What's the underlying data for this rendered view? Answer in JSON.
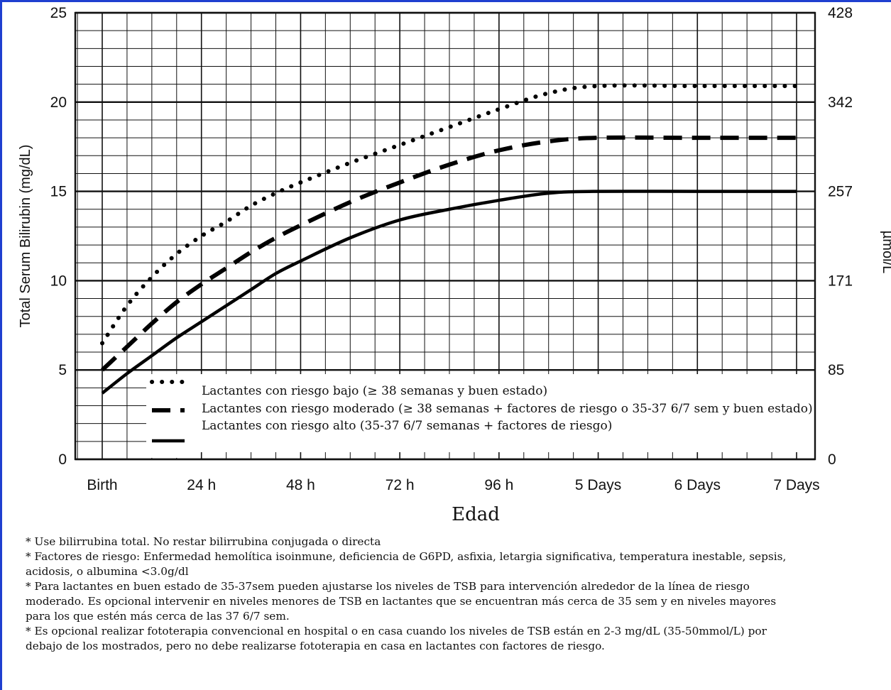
{
  "chart_data": {
    "type": "line",
    "title": "",
    "ylabel": "Total Serum Bilirubin (mg/dL)",
    "ylabel_right": "µmol/L",
    "xlabel": "Edad",
    "ylim": [
      0,
      25
    ],
    "yticks": [
      "0",
      "5",
      "10",
      "15",
      "20",
      "25"
    ],
    "yticks_right": [
      {
        "value": 0,
        "label": "0"
      },
      {
        "value": 5,
        "label": "85"
      },
      {
        "value": 10,
        "label": "171"
      },
      {
        "value": 15,
        "label": "257"
      },
      {
        "value": 20,
        "label": "342"
      },
      {
        "value": 25,
        "label": "428"
      }
    ],
    "x_categories": [
      "Birth",
      "24 h",
      "48 h",
      "72 h",
      "96 h",
      "5 Days",
      "6 Days",
      "7 Days"
    ],
    "x_unit": "hours",
    "grid": true,
    "legend_position": "lower-left inside",
    "series": [
      {
        "name": "Lactantes con riesgo bajo (≥ 38 semanas y buen estado)",
        "style": "dotted",
        "x": [
          0,
          6,
          12,
          18,
          24,
          30,
          36,
          42,
          48,
          60,
          72,
          84,
          96,
          108,
          120,
          144,
          168
        ],
        "y": [
          6.5,
          8.6,
          10.2,
          11.5,
          12.5,
          13.3,
          14.2,
          14.9,
          15.5,
          16.6,
          17.6,
          18.6,
          19.6,
          20.5,
          20.9,
          20.9,
          20.9
        ]
      },
      {
        "name": "Lactantes con riesgo moderado (≥ 38 semanas + factores de riesgo o 35-37 6/7 sem y buen estado)",
        "style": "dashed",
        "x": [
          0,
          6,
          12,
          18,
          24,
          30,
          36,
          42,
          48,
          60,
          72,
          84,
          96,
          108,
          120,
          144,
          168
        ],
        "y": [
          5.0,
          6.3,
          7.6,
          8.8,
          9.8,
          10.7,
          11.6,
          12.4,
          13.1,
          14.4,
          15.5,
          16.5,
          17.3,
          17.8,
          18.0,
          18.0,
          18.0
        ]
      },
      {
        "name": "Lactantes con riesgo alto (35-37 6/7 semanas + factores de riesgo)",
        "style": "solid",
        "x": [
          0,
          6,
          12,
          18,
          24,
          30,
          36,
          42,
          48,
          60,
          72,
          84,
          96,
          108,
          120,
          144,
          168
        ],
        "y": [
          3.7,
          4.8,
          5.8,
          6.8,
          7.7,
          8.6,
          9.5,
          10.4,
          11.1,
          12.4,
          13.4,
          14.0,
          14.5,
          14.9,
          15.0,
          15.0,
          15.0
        ]
      }
    ]
  },
  "notes": [
    "* Use bilirrubina total. No restar bilirrubina conjugada o directa",
    "* Factores de riesgo: Enfermedad hemolítica isoinmune, deficiencia de G6PD, asfixia, letargia significativa, temperatura inestable, sepsis,",
    "acidosis, o albumina <3.0g/dl",
    "* Para lactantes en buen estado de 35-37sem pueden ajustarse los niveles de TSB para intervención alrededor de la línea de riesgo",
    "moderado. Es opcional intervenir en niveles menores de TSB en lactantes que se encuentran más cerca de 35 sem y en niveles mayores",
    "para los que estén más cerca de las 37 6/7 sem.",
    "* Es opcional realizar fototerapia convencional en hospital o en casa cuando los niveles de TSB están en 2-3 mg/dL (35-50mmol/L) por",
    "debajo de los mostrados, pero  no debe realizarse fototerapia en casa en lactantes con factores de riesgo."
  ]
}
